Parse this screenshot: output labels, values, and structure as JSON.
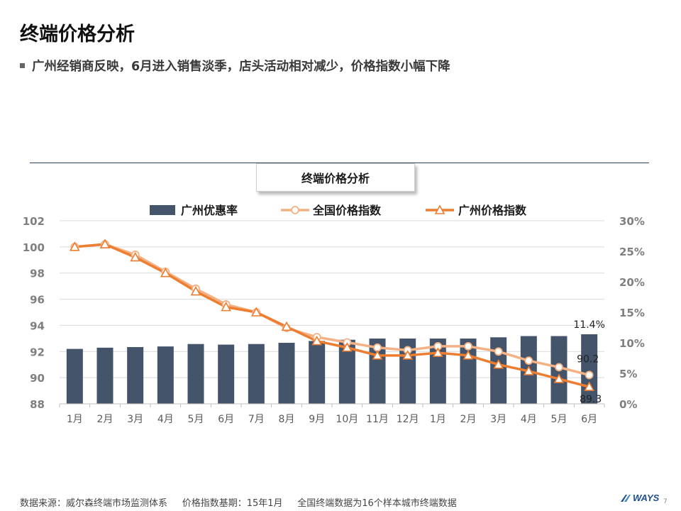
{
  "header": {
    "title": "终端价格分析",
    "subtitle": "广州经销商反映，6月进入销售淡季，店头活动相对减少，价格指数小幅下降"
  },
  "chart_data": {
    "type": "bar+line",
    "title": "终端价格分析",
    "categories": [
      "1月",
      "2月",
      "3月",
      "4月",
      "5月",
      "6月",
      "7月",
      "8月",
      "9月",
      "10月",
      "11月",
      "12月",
      "1月",
      "2月",
      "3月",
      "4月",
      "5月",
      "6月"
    ],
    "left_axis": {
      "ylim": [
        88,
        102
      ],
      "ticks": [
        "88",
        "90",
        "92",
        "94",
        "96",
        "98",
        "100",
        "102"
      ]
    },
    "right_axis": {
      "ylim": [
        0,
        30
      ],
      "ticks": [
        "0%",
        "5%",
        "10%",
        "15%",
        "20%",
        "25%",
        "30%"
      ]
    },
    "grid": true,
    "legend_position": "top",
    "series": [
      {
        "name": "广州优惠率",
        "kind": "bar",
        "axis": "right",
        "color": "#44546a",
        "values": [
          9.0,
          9.2,
          9.3,
          9.4,
          9.8,
          9.7,
          9.8,
          10.0,
          10.3,
          10.5,
          10.7,
          10.7,
          10.7,
          10.7,
          10.9,
          11.1,
          11.1,
          11.4
        ]
      },
      {
        "name": "全国价格指数",
        "kind": "line",
        "axis": "left",
        "color": "#f4b183",
        "marker": "circle",
        "values": [
          100.0,
          100.2,
          99.4,
          98.1,
          96.8,
          95.6,
          95.0,
          93.8,
          93.1,
          92.7,
          92.3,
          92.1,
          92.4,
          92.4,
          92.0,
          91.3,
          90.8,
          90.2
        ]
      },
      {
        "name": "广州价格指数",
        "kind": "line",
        "axis": "left",
        "color": "#ed7d31",
        "marker": "triangle",
        "values": [
          100.0,
          100.2,
          99.2,
          98.0,
          96.6,
          95.4,
          95.0,
          93.9,
          92.8,
          92.3,
          91.7,
          91.7,
          91.9,
          91.7,
          91.0,
          90.5,
          89.9,
          89.3
        ]
      }
    ],
    "data_labels": {
      "bar_last": "11.4%",
      "national_last": "90.2",
      "gz_last": "89.3"
    }
  },
  "footer": {
    "source": "数据来源：威尔森终端市场监测体系",
    "base": "价格指数基期：15年1月",
    "note": "全国终端数据为16个样本城市终端数据"
  },
  "logo": {
    "text": "WAYS"
  },
  "page_number": "7"
}
